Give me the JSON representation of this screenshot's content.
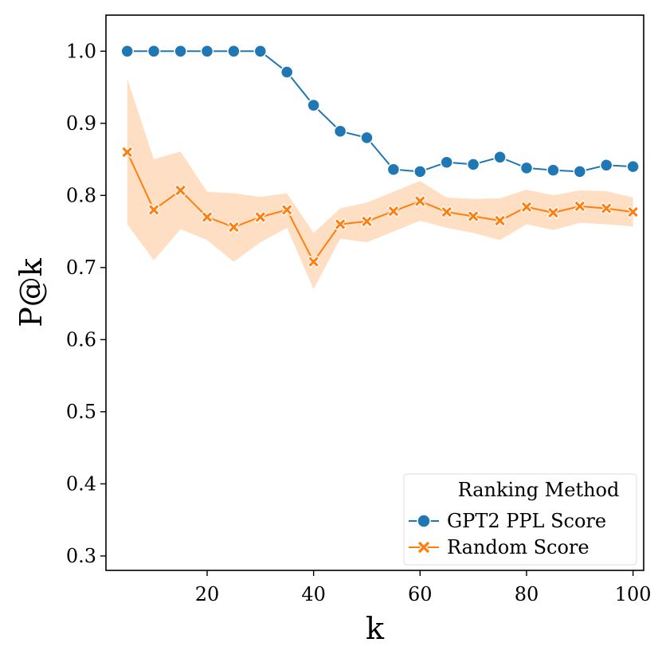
{
  "chart_data": {
    "type": "line",
    "title": "",
    "xlabel": "k",
    "ylabel": "P@k",
    "xlim": [
      1,
      102
    ],
    "ylim": [
      0.28,
      1.05
    ],
    "x_ticks": [
      20,
      40,
      60,
      80,
      100
    ],
    "y_ticks": [
      0.3,
      0.4,
      0.5,
      0.6,
      0.7,
      0.8,
      0.9,
      1.0
    ],
    "x_tick_labels": [
      "20",
      "40",
      "60",
      "80",
      100
    ],
    "y_tick_labels": [
      "0.3",
      "0.4",
      "0.5",
      "0.6",
      "0.7",
      "0.8",
      "0.9",
      "1.0"
    ],
    "x": [
      5,
      10,
      15,
      20,
      25,
      30,
      35,
      40,
      45,
      50,
      55,
      60,
      65,
      70,
      75,
      80,
      85,
      90,
      95,
      100
    ],
    "series": [
      {
        "name": "GPT2 PPL Score",
        "marker": "circle",
        "color": "#1f77b4",
        "values": [
          1.0,
          1.0,
          1.0,
          1.0,
          1.0,
          1.0,
          0.971,
          0.925,
          0.889,
          0.88,
          0.836,
          0.833,
          0.846,
          0.843,
          0.853,
          0.838,
          0.835,
          0.833,
          0.842,
          0.84
        ]
      },
      {
        "name": "Random Score",
        "marker": "x",
        "color": "#ff7f0e",
        "values": [
          0.86,
          0.78,
          0.807,
          0.77,
          0.756,
          0.77,
          0.78,
          0.708,
          0.76,
          0.764,
          0.778,
          0.792,
          0.777,
          0.771,
          0.765,
          0.784,
          0.776,
          0.785,
          0.782,
          0.777
        ],
        "ci_lower": [
          0.76,
          0.71,
          0.753,
          0.738,
          0.708,
          0.735,
          0.755,
          0.67,
          0.74,
          0.735,
          0.75,
          0.765,
          0.755,
          0.748,
          0.738,
          0.76,
          0.752,
          0.762,
          0.76,
          0.757
        ],
        "ci_upper": [
          0.962,
          0.85,
          0.861,
          0.805,
          0.803,
          0.798,
          0.803,
          0.748,
          0.782,
          0.79,
          0.805,
          0.82,
          0.797,
          0.795,
          0.796,
          0.808,
          0.8,
          0.807,
          0.806,
          0.797
        ]
      }
    ],
    "legend": {
      "title": "Ranking Method",
      "placement": "lower-right",
      "entries": [
        "GPT2 PPL Score",
        "Random Score"
      ]
    },
    "grid": false
  }
}
